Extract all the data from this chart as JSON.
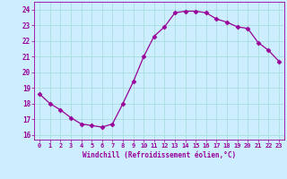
{
  "x": [
    0,
    1,
    2,
    3,
    4,
    5,
    6,
    7,
    8,
    9,
    10,
    11,
    12,
    13,
    14,
    15,
    16,
    17,
    18,
    19,
    20,
    21,
    22,
    23
  ],
  "y": [
    18.6,
    18.0,
    17.6,
    17.1,
    16.7,
    16.6,
    16.5,
    16.7,
    18.0,
    19.4,
    21.0,
    22.3,
    22.9,
    23.8,
    23.9,
    23.9,
    23.8,
    23.4,
    23.2,
    22.9,
    22.8,
    21.9,
    21.4,
    20.7
  ],
  "line_color": "#990099",
  "marker": "D",
  "marker_size": 2.5,
  "bg_color": "#cceeff",
  "grid_color": "#aadddd",
  "xlabel": "Windchill (Refroidissement éolien,°C)",
  "xlabel_color": "#990099",
  "tick_color": "#990099",
  "ylim": [
    15.7,
    24.5
  ],
  "xlim": [
    -0.5,
    23.5
  ],
  "yticks": [
    16,
    17,
    18,
    19,
    20,
    21,
    22,
    23,
    24
  ],
  "xticks": [
    0,
    1,
    2,
    3,
    4,
    5,
    6,
    7,
    8,
    9,
    10,
    11,
    12,
    13,
    14,
    15,
    16,
    17,
    18,
    19,
    20,
    21,
    22,
    23
  ],
  "xtick_labels": [
    "0",
    "1",
    "2",
    "3",
    "4",
    "5",
    "6",
    "7",
    "8",
    "9",
    "10",
    "11",
    "12",
    "13",
    "14",
    "15",
    "16",
    "17",
    "18",
    "19",
    "20",
    "21",
    "22",
    "23"
  ],
  "ytick_labels": [
    "16",
    "17",
    "18",
    "19",
    "20",
    "21",
    "22",
    "23",
    "24"
  ]
}
